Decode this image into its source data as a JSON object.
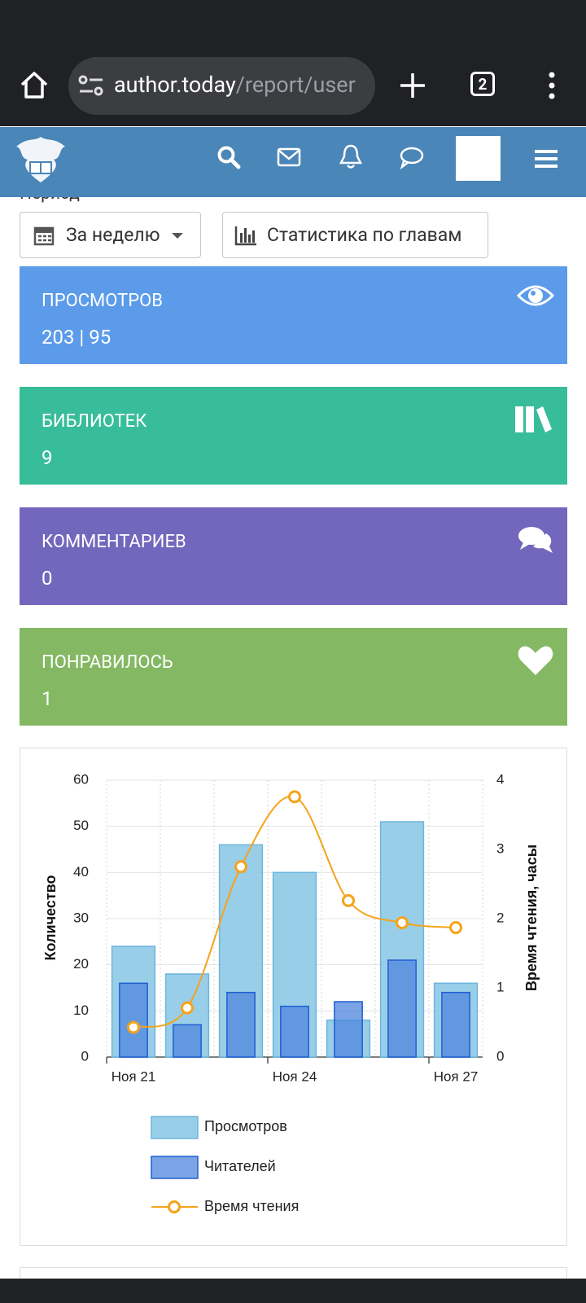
{
  "browser": {
    "url_host": "author.today",
    "url_path": "/report/user",
    "tab_count": 2
  },
  "period_label": "Период",
  "filters": {
    "period": "За неделю",
    "chapters": "Статистика по главам"
  },
  "stats": [
    {
      "label": "ПРОСМОТРОВ",
      "value": "203 | 95"
    },
    {
      "label": "БИБЛИОТЕК",
      "value": 9
    },
    {
      "label": "КОММЕНТАРИЕВ",
      "value": 0
    },
    {
      "label": "ПОНРАВИЛОСЬ",
      "value": 1
    }
  ],
  "chart_data": {
    "type": "bar",
    "categories": [
      "Ноя 21",
      null,
      null,
      "Ноя 24",
      null,
      null,
      "Ноя 27"
    ],
    "ylabel": "Количество",
    "y2label": "Время чтения, часы",
    "ylim": [
      0,
      60
    ],
    "yticks": [
      0,
      10,
      20,
      30,
      40,
      50,
      60
    ],
    "y2lim": [
      0,
      4
    ],
    "y2ticks": [
      0,
      1,
      2,
      3,
      4
    ],
    "grid": true,
    "series": [
      {
        "name": "Просмотров",
        "type": "bar",
        "color": "#8ec9e6",
        "values": [
          24,
          18,
          46,
          40,
          8,
          51,
          16
        ]
      },
      {
        "name": "Читателей",
        "type": "bar",
        "color": "#4f86de",
        "values": [
          16,
          7,
          14,
          11,
          12,
          21,
          14
        ]
      },
      {
        "name": "Время чтения",
        "type": "line",
        "axis": "y2",
        "color": "#f5a31a",
        "values": [
          0.43,
          0.71,
          2.75,
          3.76,
          2.26,
          1.94,
          1.87
        ]
      }
    ]
  }
}
